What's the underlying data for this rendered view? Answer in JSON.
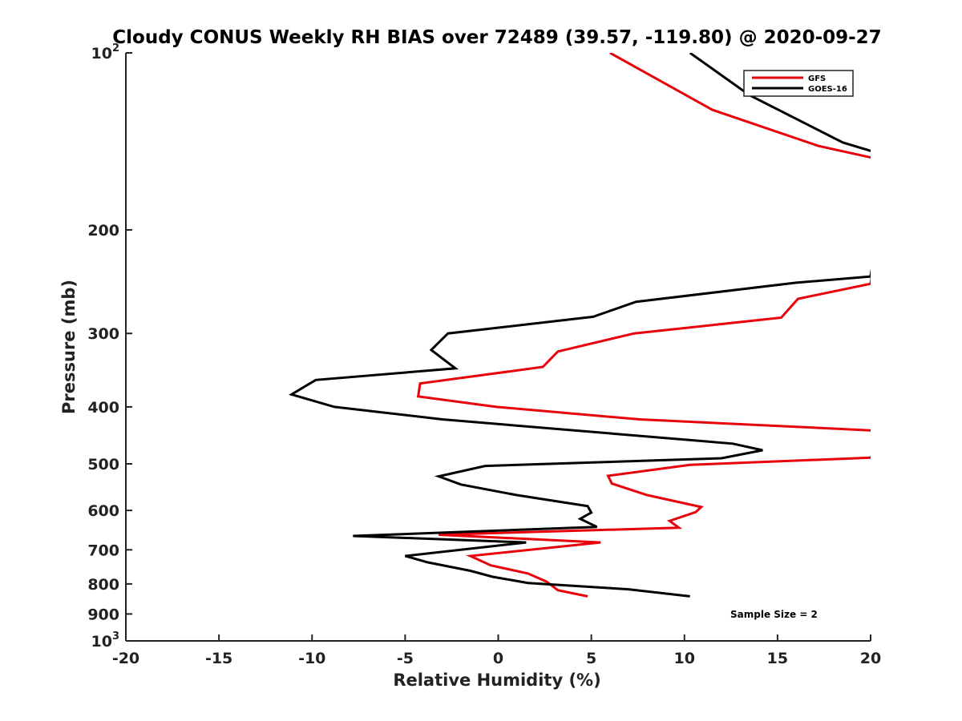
{
  "chart_data": {
    "type": "line",
    "title": "Cloudy CONUS Weekly RH BIAS over 72489 (39.57, -119.80) @ 2020-09-27",
    "xlabel": "Relative Humidity (%)",
    "ylabel": "Pressure (mb)",
    "xlim": [
      -20,
      20
    ],
    "ylim": [
      100,
      1000
    ],
    "y_scale": "log",
    "y_reversed": true,
    "grid": false,
    "legend_position": "top-right",
    "x_ticks": [
      "-20",
      "-15",
      "-10",
      "-5",
      "0",
      "5",
      "10",
      "15",
      "20"
    ],
    "y_ticks": [
      {
        "base": "10",
        "exp": "2",
        "value": 100
      },
      {
        "label": "200",
        "value": 200
      },
      {
        "label": "300",
        "value": 300
      },
      {
        "label": "400",
        "value": 400
      },
      {
        "label": "500",
        "value": 500
      },
      {
        "label": "600",
        "value": 600
      },
      {
        "label": "700",
        "value": 700
      },
      {
        "label": "800",
        "value": 800
      },
      {
        "label": "900",
        "value": 900
      },
      {
        "base": "10",
        "exp": "3",
        "value": 1000
      }
    ],
    "annotation": "Sample Size = 2",
    "series": [
      {
        "name": "GFS",
        "color": "#e8000b",
        "points": [
          [
            6.0,
            100
          ],
          [
            11.5,
            125
          ],
          [
            17.2,
            144
          ],
          [
            21.0,
            153
          ],
          [
            20.0,
            247
          ],
          [
            16.1,
            262
          ],
          [
            15.2,
            282
          ],
          [
            7.3,
            300
          ],
          [
            3.2,
            322
          ],
          [
            2.4,
            342
          ],
          [
            -4.2,
            365
          ],
          [
            -4.3,
            384
          ],
          [
            -0.1,
            400
          ],
          [
            7.6,
            420
          ],
          [
            21.0,
            440
          ],
          [
            20.0,
            488
          ],
          [
            10.3,
            502
          ],
          [
            5.9,
            524
          ],
          [
            6.1,
            540
          ],
          [
            8.0,
            565
          ],
          [
            10.9,
            592
          ],
          [
            10.6,
            604
          ],
          [
            9.2,
            625
          ],
          [
            9.7,
            642
          ],
          [
            -3.2,
            660
          ],
          [
            5.5,
            680
          ],
          [
            -1.5,
            717
          ],
          [
            -0.4,
            744
          ],
          [
            1.6,
            768
          ],
          [
            2.6,
            793
          ],
          [
            3.2,
            820
          ],
          [
            4.8,
            840
          ]
        ]
      },
      {
        "name": "GOES-16",
        "color": "#000000",
        "points": [
          [
            10.3,
            100
          ],
          [
            13.5,
            118
          ],
          [
            18.5,
            142
          ],
          [
            21.0,
            150
          ],
          [
            20.0,
            240
          ],
          [
            16.0,
            246
          ],
          [
            7.4,
            265
          ],
          [
            5.1,
            281
          ],
          [
            -2.7,
            300
          ],
          [
            -3.6,
            320
          ],
          [
            -2.3,
            344
          ],
          [
            -9.8,
            360
          ],
          [
            -11.1,
            381
          ],
          [
            -8.8,
            400
          ],
          [
            -3.0,
            420
          ],
          [
            12.6,
            462
          ],
          [
            14.2,
            474
          ],
          [
            12.0,
            489
          ],
          [
            -0.7,
            504
          ],
          [
            -3.2,
            525
          ],
          [
            -2.0,
            542
          ],
          [
            1.0,
            565
          ],
          [
            4.8,
            590
          ],
          [
            5.0,
            605
          ],
          [
            4.4,
            620
          ],
          [
            5.3,
            640
          ],
          [
            -7.8,
            663
          ],
          [
            1.5,
            680
          ],
          [
            -5.0,
            717
          ],
          [
            -3.8,
            735
          ],
          [
            -1.5,
            760
          ],
          [
            -0.3,
            778
          ],
          [
            1.6,
            797
          ],
          [
            7.0,
            817
          ],
          [
            10.3,
            840
          ]
        ]
      }
    ]
  }
}
